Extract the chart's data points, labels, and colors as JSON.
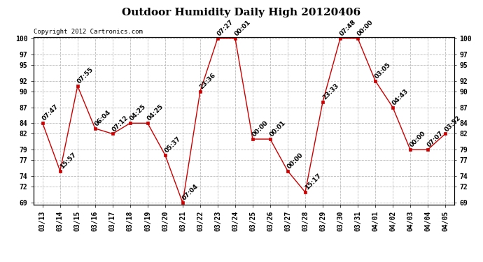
{
  "title": "Outdoor Humidity Daily High 20120406",
  "copyright": "Copyright 2012 Cartronics.com",
  "x_labels": [
    "03/13",
    "03/14",
    "03/15",
    "03/16",
    "03/17",
    "03/18",
    "03/19",
    "03/20",
    "03/21",
    "03/22",
    "03/23",
    "03/24",
    "03/25",
    "03/26",
    "03/27",
    "03/28",
    "03/29",
    "03/30",
    "03/31",
    "04/01",
    "04/02",
    "04/03",
    "04/04",
    "04/05"
  ],
  "y_values": [
    84,
    75,
    91,
    83,
    82,
    84,
    84,
    78,
    69,
    90,
    100,
    100,
    81,
    81,
    75,
    71,
    88,
    100,
    100,
    92,
    87,
    79,
    79,
    82
  ],
  "point_labels": [
    "07:47",
    "15:57",
    "07:55",
    "06:04",
    "07:12",
    "04:25",
    "04:25",
    "05:37",
    "07:04",
    "23:36",
    "07:27",
    "00:01",
    "00:00",
    "00:01",
    "00:00",
    "15:17",
    "23:33",
    "07:48",
    "00:00",
    "03:05",
    "04:43",
    "00:00",
    "07:07",
    "03:52"
  ],
  "ylim_min": 69,
  "ylim_max": 100,
  "yticks": [
    69,
    72,
    74,
    77,
    79,
    82,
    84,
    87,
    90,
    92,
    95,
    97,
    100
  ],
  "line_color": "#cc0000",
  "marker_color": "#cc0000",
  "marker_size": 3,
  "bg_color": "#ffffff",
  "grid_color": "#bbbbbb",
  "title_fontsize": 11,
  "tick_fontsize": 7,
  "annot_fontsize": 6.5,
  "copyright_fontsize": 6.5,
  "fig_width": 6.9,
  "fig_height": 3.75,
  "dpi": 100
}
